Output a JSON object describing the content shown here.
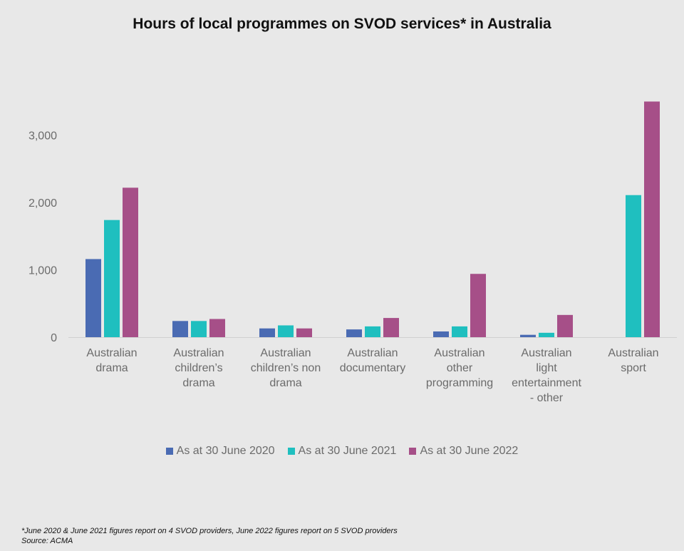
{
  "chart_data": {
    "type": "bar",
    "title": "Hours of local programmes on SVOD services* in Australia",
    "categories": [
      [
        "Australian",
        "drama"
      ],
      [
        "Australian",
        "children’s",
        "drama"
      ],
      [
        "Australian",
        "children’s non",
        "drama"
      ],
      [
        "Australian",
        "documentary"
      ],
      [
        "Australian",
        "other",
        "programming"
      ],
      [
        "Australian",
        "light",
        "entertainment",
        "- other"
      ],
      [
        "Australian",
        "sport"
      ]
    ],
    "series": [
      {
        "name": "As at 30 June 2020",
        "color": "#4a6bb3",
        "values": [
          1160,
          240,
          130,
          115,
          85,
          35,
          0
        ]
      },
      {
        "name": "As at 30 June 2021",
        "color": "#1fbfbf",
        "values": [
          1740,
          240,
          175,
          160,
          160,
          65,
          2110
        ]
      },
      {
        "name": "As at 30 June 2022",
        "color": "#a64f88",
        "values": [
          2220,
          270,
          130,
          285,
          940,
          330,
          3500
        ]
      }
    ],
    "ylim": [
      0,
      3600
    ],
    "yticks": [
      0,
      1000,
      2000,
      3000
    ],
    "ytick_labels": [
      "0",
      "1,000",
      "2,000",
      "3,000"
    ],
    "xlabel": "",
    "ylabel": "",
    "grid": false,
    "legend_position": "bottom"
  },
  "footnote": {
    "line1": "*June 2020 & June 2021 figures report on 4 SVOD providers, June 2022 figures report on 5 SVOD providers",
    "line2": "Source: ACMA"
  }
}
